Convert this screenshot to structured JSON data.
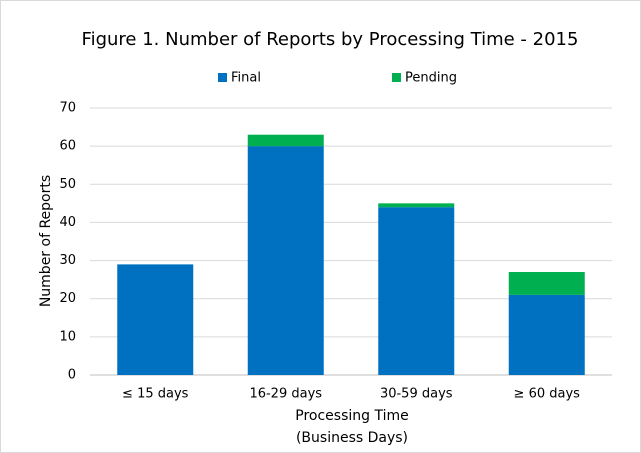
{
  "chart_data": {
    "type": "stacked_bar",
    "title": "Figure 1. Number of Reports by Processing Time - 2015",
    "categories": [
      "≤ 15 days",
      "16-29 days",
      "30-59 days",
      "≥ 60 days"
    ],
    "series": [
      {
        "name": "Final",
        "color": "#0070c0",
        "values": [
          29,
          60,
          44,
          21
        ]
      },
      {
        "name": "Pending",
        "color": "#00b050",
        "values": [
          0,
          3,
          1,
          6
        ]
      }
    ],
    "ylabel": "Number of Reports",
    "xlabel": [
      "Processing Time",
      "(Business Days)"
    ],
    "ylim": [
      0,
      70
    ],
    "yticks": [
      0,
      10,
      20,
      30,
      40,
      50,
      60,
      70
    ],
    "grid": true,
    "legend": "top"
  }
}
